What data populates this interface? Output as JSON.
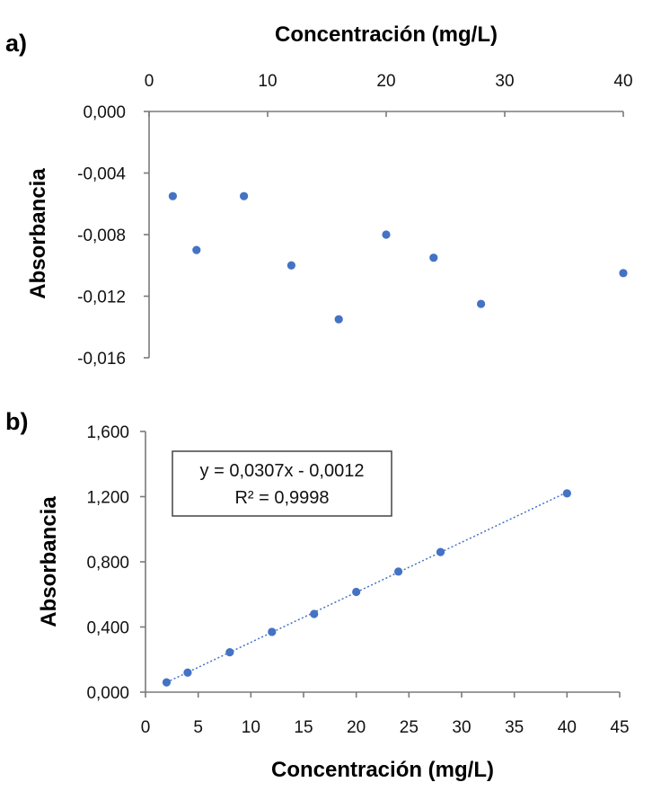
{
  "chart_data": [
    {
      "panel_label": "a)",
      "type": "scatter",
      "xlabel": "Concentración (mg/L)",
      "ylabel": "Absorbancia",
      "x_axis_position": "top",
      "xlim": [
        0,
        40
      ],
      "ylim": [
        -0.016,
        0.0
      ],
      "x_ticks": [
        0,
        10,
        20,
        30,
        40
      ],
      "x_tick_labels": [
        "0",
        "10",
        "20",
        "30",
        "40"
      ],
      "y_ticks": [
        0.0,
        -0.004,
        -0.008,
        -0.012,
        -0.016
      ],
      "y_tick_labels": [
        "0,000",
        "-0,004",
        "-0,008",
        "-0,012",
        "-0,016"
      ],
      "grid": false,
      "color": "#4472C4",
      "x": [
        2,
        4,
        8,
        12,
        16,
        20,
        24,
        28,
        40
      ],
      "y": [
        -0.0055,
        -0.009,
        -0.0055,
        -0.01,
        -0.0135,
        -0.008,
        -0.0095,
        -0.0125,
        -0.0105
      ]
    },
    {
      "panel_label": "b)",
      "type": "scatter",
      "xlabel": "Concentración (mg/L)",
      "ylabel": "Absorbancia",
      "x_axis_position": "bottom",
      "xlim": [
        0,
        45
      ],
      "ylim": [
        0.0,
        1.6
      ],
      "x_ticks": [
        0,
        5,
        10,
        15,
        20,
        25,
        30,
        35,
        40,
        45
      ],
      "x_tick_labels": [
        "0",
        "5",
        "10",
        "15",
        "20",
        "25",
        "30",
        "35",
        "40",
        "45"
      ],
      "y_ticks": [
        0.0,
        0.4,
        0.8,
        1.2,
        1.6
      ],
      "y_tick_labels": [
        "0,000",
        "0,400",
        "0,800",
        "1,200",
        "1,600"
      ],
      "grid": false,
      "color": "#4472C4",
      "x": [
        2,
        4,
        8,
        12,
        16,
        20,
        24,
        28,
        40
      ],
      "y": [
        0.06,
        0.12,
        0.245,
        0.37,
        0.48,
        0.615,
        0.74,
        0.86,
        1.22
      ],
      "trendline": {
        "slope": 0.0307,
        "intercept": -0.0012,
        "style": "dotted"
      },
      "annotation": {
        "equation": "y = 0,0307x - 0,0012",
        "r_squared": "R² = 0,9998",
        "placement": "top-left"
      }
    }
  ]
}
